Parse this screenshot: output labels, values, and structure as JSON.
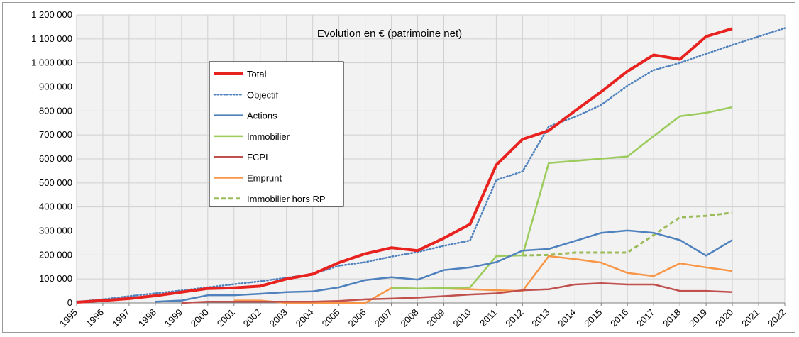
{
  "chart_data": {
    "type": "line",
    "title": "Evolution en € (patrimoine net)",
    "xlabel": "",
    "ylabel": "",
    "ylim": [
      0,
      1200000
    ],
    "yticks": [
      0,
      100000,
      200000,
      300000,
      400000,
      500000,
      600000,
      700000,
      800000,
      900000,
      1000000,
      1100000,
      1200000
    ],
    "ytick_labels": [
      "0",
      "100 000",
      "200 000",
      "300 000",
      "400 000",
      "500 000",
      "600 000",
      "700 000",
      "800 000",
      "900 000",
      "1 000 000",
      "1 100 000",
      "1 200 000"
    ],
    "x": [
      "1995",
      "1996",
      "1997",
      "1998",
      "1999",
      "2000",
      "2001",
      "2002",
      "2003",
      "2004",
      "2005",
      "2006",
      "2007",
      "2008",
      "2009",
      "2010",
      "2011",
      "2012",
      "2013",
      "2014",
      "2015",
      "2016",
      "2017",
      "2018",
      "2019",
      "2020",
      "2021",
      "2022"
    ],
    "grid": true,
    "legend_position": "top-left inside",
    "series": [
      {
        "name": "Total",
        "color": "#e8231f",
        "style": "solid-thick",
        "values": [
          3000,
          10000,
          18000,
          30000,
          45000,
          60000,
          63000,
          70000,
          100000,
          120000,
          168000,
          205000,
          230000,
          218000,
          270000,
          328000,
          575000,
          682000,
          718000,
          800000,
          880000,
          965000,
          1033000,
          1015000,
          1110000,
          1143000,
          null,
          null
        ]
      },
      {
        "name": "Objectif",
        "color": "#4e81bd",
        "style": "dotted",
        "values": [
          5000,
          15000,
          28000,
          40000,
          52000,
          65000,
          78000,
          90000,
          105000,
          120000,
          155000,
          170000,
          193000,
          212000,
          238000,
          260000,
          512000,
          548000,
          735000,
          775000,
          825000,
          905000,
          970000,
          1000000,
          1038000,
          1075000,
          1110000,
          1145000
        ]
      },
      {
        "name": "Actions",
        "color": "#4e81bd",
        "style": "solid",
        "values": [
          null,
          null,
          null,
          5000,
          10000,
          32000,
          32000,
          38000,
          45000,
          48000,
          65000,
          95000,
          107000,
          97000,
          137000,
          148000,
          170000,
          218000,
          225000,
          258000,
          292000,
          302000,
          292000,
          262000,
          197000,
          262000,
          null,
          null
        ]
      },
      {
        "name": "Immobilier",
        "color": "#9bcb5b",
        "style": "solid",
        "values": [
          null,
          null,
          null,
          null,
          null,
          null,
          null,
          null,
          null,
          null,
          null,
          null,
          62000,
          60000,
          62000,
          65000,
          195000,
          198000,
          583000,
          592000,
          601000,
          610000,
          695000,
          778000,
          792000,
          816000,
          null,
          null
        ]
      },
      {
        "name": "FCPI",
        "color": "#c0504d",
        "style": "solid",
        "values": [
          null,
          null,
          null,
          null,
          0,
          5000,
          5000,
          5000,
          5000,
          5000,
          8000,
          15000,
          18000,
          22000,
          28000,
          35000,
          40000,
          53000,
          57000,
          77000,
          82000,
          77000,
          77000,
          50000,
          50000,
          45000,
          null,
          null
        ]
      },
      {
        "name": "Emprunt",
        "color": "#f79646",
        "style": "solid",
        "values": [
          null,
          null,
          null,
          null,
          null,
          null,
          10000,
          10000,
          0,
          0,
          0,
          0,
          62000,
          60000,
          60000,
          57000,
          53000,
          50000,
          195000,
          183000,
          168000,
          125000,
          112000,
          165000,
          148000,
          133000,
          null,
          null
        ]
      },
      {
        "name": "Immobilier hors RP",
        "color": "#9bbb59",
        "style": "dashed",
        "values": [
          null,
          null,
          null,
          null,
          null,
          null,
          null,
          null,
          null,
          null,
          null,
          null,
          null,
          null,
          null,
          null,
          null,
          198000,
          200000,
          210000,
          210000,
          210000,
          283000,
          357000,
          363000,
          376000,
          null,
          null
        ]
      }
    ]
  }
}
